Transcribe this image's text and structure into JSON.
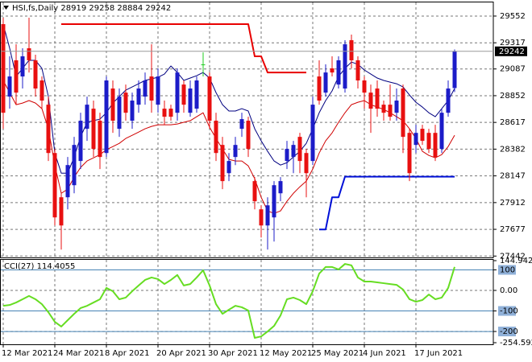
{
  "chart_data": [
    {
      "type": "candlestick",
      "title": "HSI,fs,Daily",
      "categories": [
        "12 Mar 2021",
        null,
        null,
        null,
        null,
        null,
        null,
        null,
        "24 Mar 2021",
        null,
        null,
        null,
        null,
        null,
        null,
        null,
        "8 Apr 2021",
        null,
        null,
        null,
        null,
        null,
        null,
        null,
        "20 Apr 2021",
        null,
        null,
        null,
        null,
        null,
        null,
        null,
        "30 Apr 2021",
        null,
        null,
        null,
        null,
        null,
        null,
        null,
        "12 May 2021",
        null,
        null,
        null,
        null,
        null,
        null,
        null,
        "25 May 2021",
        null,
        null,
        null,
        null,
        null,
        null,
        null,
        "4 Jun 2021",
        null,
        null,
        null,
        null,
        null,
        null,
        null,
        "17 Jun 2021",
        null,
        null,
        null,
        null,
        null,
        null
      ],
      "open": [
        29481,
        28844,
        29163,
        29021,
        29269,
        29163,
        28986,
        28773,
        28348,
        27959,
        27959,
        28065,
        28278,
        28561,
        28738,
        28632,
        28348,
        28915,
        28561,
        28879,
        28632,
        28773,
        28844,
        29021,
        28773,
        28738,
        28738,
        28702,
        28950,
        28702,
        28738,
        29127,
        29021,
        28632,
        28419,
        28171,
        28313,
        28561,
        28632,
        28101,
        27853,
        27711,
        27782,
        27994,
        28278,
        28313,
        28490,
        28348,
        28278,
        29021,
        28879,
        29092,
        28950,
        28915,
        29340,
        29163,
        28986,
        28879,
        28915,
        28773,
        28773,
        28702,
        28915,
        28525,
        28419,
        28561,
        28525,
        28525,
        28384,
        28702,
        28919
      ],
      "high": [
        29538,
        29198,
        29304,
        29269,
        29538,
        29212,
        29021,
        28844,
        28384,
        27994,
        28313,
        28490,
        28702,
        28844,
        28809,
        28702,
        29021,
        28986,
        28915,
        28950,
        28879,
        28986,
        29056,
        29304,
        29092,
        28809,
        28773,
        29092,
        28986,
        28986,
        29021,
        29233,
        29056,
        28702,
        28490,
        28348,
        28490,
        28702,
        28667,
        28136,
        27888,
        27959,
        28101,
        28136,
        28455,
        28455,
        28525,
        28384,
        28844,
        29163,
        29127,
        29198,
        29198,
        29340,
        29389,
        29198,
        29021,
        28950,
        28986,
        28809,
        28950,
        28915,
        28950,
        28561,
        28596,
        28596,
        28561,
        28596,
        28738,
        28986,
        29258
      ],
      "low": [
        28561,
        28738,
        28773,
        28915,
        29056,
        28844,
        28738,
        28278,
        27711,
        27499,
        27853,
        27994,
        28207,
        28455,
        28313,
        28207,
        28313,
        28525,
        28490,
        28632,
        28561,
        28702,
        28773,
        28702,
        28702,
        28596,
        28632,
        28632,
        28702,
        28667,
        28702,
        29021,
        28561,
        28278,
        28030,
        28101,
        28242,
        28490,
        28313,
        27853,
        27605,
        27499,
        27570,
        27924,
        28207,
        28171,
        28171,
        27959,
        28242,
        28773,
        28844,
        29021,
        28915,
        28879,
        29092,
        28915,
        28738,
        28525,
        28667,
        28632,
        28632,
        28632,
        28348,
        28101,
        28348,
        28419,
        28348,
        28278,
        28348,
        28667,
        28884
      ],
      "close": [
        28702,
        29021,
        28879,
        29198,
        29163,
        28915,
        28809,
        28348,
        27782,
        27711,
        28242,
        28419,
        28632,
        28773,
        28384,
        28313,
        28986,
        28632,
        28844,
        28702,
        28809,
        28915,
        28986,
        28809,
        29021,
        28667,
        28667,
        29056,
        28773,
        28915,
        28986,
        29127,
        28632,
        28348,
        28101,
        28278,
        28419,
        28646,
        28384,
        27924,
        27711,
        27888,
        28065,
        28101,
        28384,
        28419,
        28278,
        28171,
        28773,
        28809,
        29056,
        29056,
        29163,
        29304,
        29163,
        28986,
        28879,
        28738,
        28738,
        28702,
        28667,
        28809,
        28490,
        28171,
        28525,
        28455,
        28384,
        28313,
        28702,
        28915,
        29242
      ],
      "up_color": "#1c1cc8",
      "down_color": "#e81010",
      "doji_color": "#22cc22",
      "overlays": [
        {
          "color": "#000080",
          "width": 1,
          "values": [
            29481,
            29269,
            29021,
            29092,
            29163,
            29163,
            29092,
            28844,
            28348,
            28171,
            28171,
            28313,
            28490,
            28618,
            28632,
            28646,
            28702,
            28787,
            28844,
            28901,
            28929,
            28957,
            28986,
            29000,
            29014,
            29042,
            29113,
            29056,
            28986,
            29007,
            29028,
            29056,
            29007,
            28879,
            28773,
            28717,
            28717,
            28738,
            28717,
            28561,
            28455,
            28363,
            28278,
            28242,
            28263,
            28313,
            28363,
            28433,
            28561,
            28702,
            28809,
            28894,
            29021,
            29092,
            29148,
            29127,
            29078,
            29042,
            29007,
            28986,
            28971,
            28957,
            28929,
            28858,
            28794,
            28752,
            28702,
            28667,
            28738,
            28809,
            28915
          ]
        },
        {
          "color": "#d00000",
          "width": 1,
          "values": [
            28986,
            28879,
            28773,
            28787,
            28809,
            28787,
            28738,
            28561,
            28242,
            27994,
            28030,
            28136,
            28221,
            28278,
            28306,
            28334,
            28377,
            28405,
            28433,
            28476,
            28504,
            28532,
            28561,
            28582,
            28596,
            28596,
            28596,
            28603,
            28618,
            28632,
            28667,
            28702,
            28575,
            28476,
            28384,
            28292,
            28278,
            28278,
            28235,
            28122,
            27959,
            27839,
            27817,
            27839,
            27924,
            27994,
            28051,
            28101,
            28207,
            28348,
            28455,
            28525,
            28618,
            28702,
            28773,
            28794,
            28809,
            28773,
            28752,
            28731,
            28702,
            28667,
            28632,
            28561,
            28476,
            28363,
            28327,
            28306,
            28334,
            28405,
            28504
          ]
        },
        {
          "color": "#e80000",
          "width": 2,
          "values": [
            null,
            null,
            null,
            null,
            null,
            null,
            null,
            null,
            null,
            29481,
            29481,
            29481,
            29481,
            29481,
            29481,
            29481,
            29481,
            29481,
            29481,
            29481,
            29481,
            29481,
            29481,
            29481,
            29481,
            29481,
            29481,
            29481,
            29481,
            29481,
            29481,
            29481,
            29481,
            29481,
            29481,
            29481,
            29481,
            29481,
            29481,
            29198,
            29198,
            29056,
            29056,
            29056,
            29056,
            29056,
            29056,
            29056,
            null,
            null,
            null,
            null,
            null,
            null,
            null,
            null,
            null,
            null,
            null,
            null,
            null,
            null,
            null,
            null,
            null,
            null,
            null,
            null,
            null,
            null,
            null
          ]
        },
        {
          "color": "#0010d8",
          "width": 2,
          "values": [
            null,
            null,
            null,
            null,
            null,
            null,
            null,
            null,
            null,
            null,
            null,
            null,
            null,
            null,
            null,
            null,
            null,
            null,
            null,
            null,
            null,
            null,
            null,
            null,
            null,
            null,
            null,
            null,
            null,
            null,
            null,
            null,
            null,
            null,
            null,
            null,
            null,
            null,
            null,
            null,
            null,
            null,
            null,
            null,
            null,
            null,
            null,
            null,
            null,
            27676,
            27676,
            27959,
            27959,
            28140,
            28140,
            28140,
            28140,
            28140,
            28140,
            28140,
            28140,
            28140,
            28140,
            28140,
            28140,
            28140,
            28140,
            28140,
            28140,
            28140,
            28140
          ]
        }
      ],
      "ylim": [
        27430,
        29672
      ],
      "yticks": [
        29552,
        29317,
        29087,
        28852,
        28617,
        28382,
        28147,
        27912,
        27677,
        27442
      ],
      "grid": true
    },
    {
      "type": "line",
      "title": "CCI(27)",
      "series": [
        {
          "color": "#66dd22",
          "values": [
            -75,
            -71,
            -59,
            -43,
            -27,
            -43,
            -67,
            -106,
            -153,
            -176,
            -145,
            -114,
            -86,
            -75,
            -59,
            -43,
            12,
            -4,
            -43,
            -35,
            -4,
            24,
            51,
            63,
            55,
            31,
            51,
            75,
            24,
            31,
            63,
            98,
            24,
            -67,
            -114,
            -94,
            -75,
            -82,
            -98,
            -231,
            -224,
            -200,
            -173,
            -122,
            -43,
            -35,
            -47,
            -67,
            -4,
            82,
            114,
            114,
            102,
            129,
            122,
            63,
            43,
            43,
            39,
            35,
            31,
            27,
            4,
            -43,
            -55,
            -47,
            -20,
            -43,
            -35,
            12,
            114.4055
          ]
        }
      ],
      "ylim": [
        -254.592,
        144.9423
      ],
      "yticks": [
        144.9423,
        100,
        {
          "value": 0,
          "label": "0.00"
        },
        -100,
        -200,
        -254.592
      ],
      "levels": [
        100,
        -100,
        -200
      ],
      "level_color": "#4682b4",
      "grid": true
    }
  ]
}
